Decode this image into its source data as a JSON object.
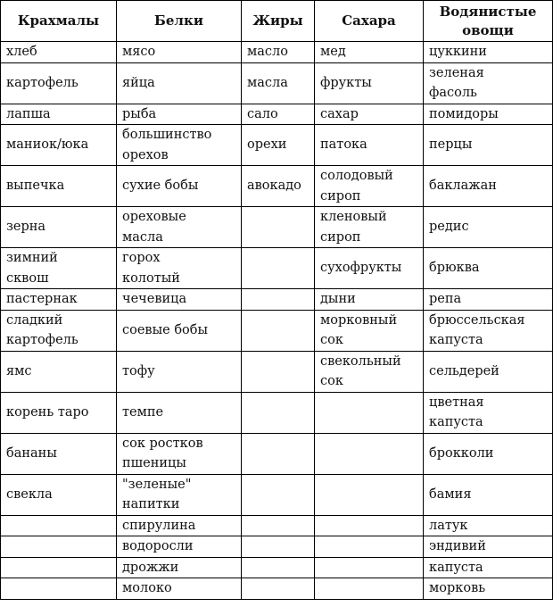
{
  "headers": [
    "Крахмалы",
    "Белки",
    "Жиры",
    "Сахара",
    "Водянистые\nовощи"
  ],
  "rows": [
    [
      "хлеб",
      "мясо",
      "масло",
      "мед",
      "цуккини"
    ],
    [
      "картофель",
      "яйца",
      "масла",
      "фрукты",
      "зеленая\nфасоль"
    ],
    [
      "лапша",
      "рыба",
      "сало",
      "сахар",
      "помидоры"
    ],
    [
      "маниок/юка",
      "большинство\nорехов",
      "орехи",
      "патока",
      "перцы"
    ],
    [
      "выпечка",
      "сухие бобы",
      "авокадо",
      "солодовый\nсироп",
      "баклажан"
    ],
    [
      "зерна",
      "ореховые\nмасла",
      "",
      "кленовый\nсироп",
      "редис"
    ],
    [
      "зимний\nсквош",
      "горох\nколотый",
      "",
      "сухофрукты",
      "брюква"
    ],
    [
      "пастернак",
      "чечевица",
      "",
      "дыни",
      "репа"
    ],
    [
      "сладкий\nкартофель",
      "соевые бобы",
      "",
      "морковный\nсок",
      "брюссельская\nкапуста"
    ],
    [
      "ямс",
      "тофу",
      "",
      "свекольный\nсок",
      "сельдерей"
    ],
    [
      "корень таро",
      "темпе",
      "",
      "",
      "цветная\nкапуста"
    ],
    [
      "бананы",
      "сок ростков\nпшеницы",
      "",
      "",
      "брокколи"
    ],
    [
      "свекла",
      "\"зеленые\"\nнапитки",
      "",
      "",
      "бамия"
    ],
    [
      "",
      "спирулина",
      "",
      "",
      "латук"
    ],
    [
      "",
      "водоросли",
      "",
      "",
      "эндивий"
    ],
    [
      "",
      "дрожжи",
      "",
      "",
      "капуста"
    ],
    [
      "",
      "молоко",
      "",
      "",
      "морковь"
    ]
  ]
}
